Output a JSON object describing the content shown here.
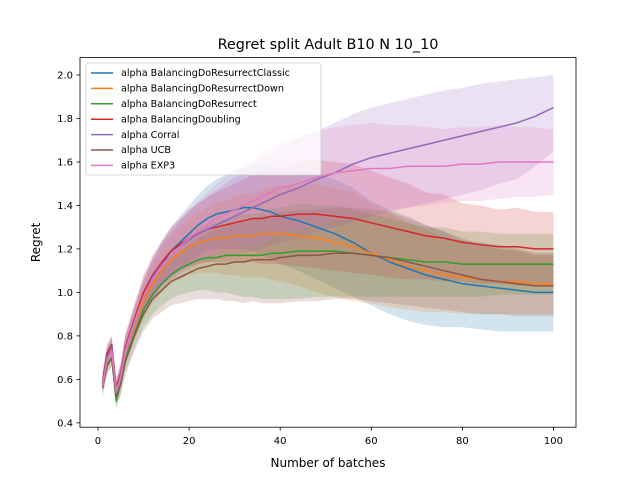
{
  "chart_data": {
    "type": "line",
    "title": "Regret split Adult B10 N 10_10",
    "xlabel": "Number of batches",
    "ylabel": "Regret",
    "xlim": [
      -3.95,
      104.95
    ],
    "ylim": [
      0.38,
      2.08
    ],
    "xticks": [
      0,
      20,
      40,
      60,
      80,
      100
    ],
    "xtick_labels": [
      "0",
      "20",
      "40",
      "60",
      "80",
      "100"
    ],
    "yticks": [
      0.4,
      0.6,
      0.8,
      1.0,
      1.2,
      1.4,
      1.6,
      1.8,
      2.0
    ],
    "ytick_labels": [
      "0.4",
      "0.6",
      "0.8",
      "1.0",
      "1.2",
      "1.4",
      "1.6",
      "1.8",
      "2.0"
    ],
    "grid": false,
    "legend_position": "top-left",
    "series": [
      {
        "name": "alpha BalancingDoResurrectClassic",
        "color": "#1f77b4",
        "x": [
          1,
          2,
          3,
          4,
          5,
          6,
          8,
          10,
          12,
          14,
          16,
          18,
          20,
          22,
          24,
          26,
          28,
          30,
          32,
          34,
          36,
          38,
          40,
          44,
          48,
          52,
          56,
          60,
          64,
          68,
          72,
          76,
          80,
          84,
          88,
          92,
          96,
          100
        ],
        "y": [
          0.58,
          0.72,
          0.76,
          0.55,
          0.62,
          0.74,
          0.86,
          0.98,
          1.06,
          1.13,
          1.19,
          1.23,
          1.27,
          1.31,
          1.34,
          1.36,
          1.37,
          1.38,
          1.39,
          1.39,
          1.38,
          1.37,
          1.35,
          1.33,
          1.3,
          1.27,
          1.23,
          1.18,
          1.14,
          1.11,
          1.08,
          1.06,
          1.04,
          1.03,
          1.02,
          1.01,
          1.0,
          1.0
        ],
        "lower": [
          0.54,
          0.68,
          0.72,
          0.51,
          0.57,
          0.68,
          0.79,
          0.9,
          0.97,
          1.03,
          1.08,
          1.11,
          1.14,
          1.17,
          1.19,
          1.2,
          1.2,
          1.2,
          1.2,
          1.19,
          1.17,
          1.15,
          1.13,
          1.1,
          1.06,
          1.02,
          0.98,
          0.94,
          0.9,
          0.87,
          0.85,
          0.84,
          0.84,
          0.83,
          0.82,
          0.82,
          0.82,
          0.82
        ],
        "upper": [
          0.62,
          0.76,
          0.8,
          0.59,
          0.67,
          0.8,
          0.93,
          1.06,
          1.15,
          1.23,
          1.3,
          1.35,
          1.4,
          1.45,
          1.49,
          1.52,
          1.54,
          1.56,
          1.58,
          1.59,
          1.59,
          1.59,
          1.57,
          1.56,
          1.54,
          1.52,
          1.48,
          1.42,
          1.38,
          1.35,
          1.31,
          1.28,
          1.24,
          1.23,
          1.22,
          1.2,
          1.18,
          1.18
        ]
      },
      {
        "name": "alpha BalancingDoResurrectDown",
        "color": "#ff7f0e",
        "x": [
          1,
          2,
          3,
          4,
          5,
          6,
          8,
          10,
          12,
          14,
          16,
          18,
          20,
          22,
          24,
          26,
          28,
          30,
          32,
          34,
          36,
          38,
          40,
          44,
          48,
          52,
          56,
          60,
          64,
          68,
          72,
          76,
          80,
          84,
          88,
          92,
          96,
          100
        ],
        "y": [
          0.58,
          0.7,
          0.74,
          0.56,
          0.62,
          0.73,
          0.85,
          0.96,
          1.04,
          1.1,
          1.15,
          1.18,
          1.21,
          1.23,
          1.24,
          1.25,
          1.25,
          1.26,
          1.26,
          1.26,
          1.27,
          1.27,
          1.27,
          1.26,
          1.25,
          1.23,
          1.21,
          1.18,
          1.15,
          1.12,
          1.1,
          1.08,
          1.07,
          1.06,
          1.05,
          1.05,
          1.04,
          1.04
        ],
        "lower": [
          0.54,
          0.66,
          0.7,
          0.52,
          0.57,
          0.67,
          0.78,
          0.88,
          0.95,
          1.0,
          1.04,
          1.06,
          1.08,
          1.09,
          1.09,
          1.09,
          1.08,
          1.08,
          1.07,
          1.07,
          1.07,
          1.06,
          1.05,
          1.03,
          1.0,
          0.98,
          0.96,
          0.95,
          0.93,
          0.92,
          0.91,
          0.91,
          0.9,
          0.9,
          0.9,
          0.9,
          0.9,
          0.9
        ],
        "upper": [
          0.62,
          0.74,
          0.78,
          0.6,
          0.67,
          0.79,
          0.92,
          1.04,
          1.13,
          1.2,
          1.26,
          1.3,
          1.34,
          1.37,
          1.39,
          1.41,
          1.42,
          1.44,
          1.45,
          1.45,
          1.47,
          1.48,
          1.49,
          1.49,
          1.5,
          1.48,
          1.46,
          1.41,
          1.37,
          1.32,
          1.29,
          1.25,
          1.24,
          1.22,
          1.2,
          1.2,
          1.18,
          1.18
        ]
      },
      {
        "name": "alpha BalancingDoResurrect",
        "color": "#2ca02c",
        "x": [
          1,
          2,
          3,
          4,
          5,
          6,
          8,
          10,
          12,
          14,
          16,
          18,
          20,
          22,
          24,
          26,
          28,
          30,
          32,
          34,
          36,
          38,
          40,
          44,
          48,
          52,
          56,
          60,
          64,
          68,
          72,
          76,
          80,
          84,
          88,
          92,
          96,
          100
        ],
        "y": [
          0.57,
          0.67,
          0.7,
          0.5,
          0.58,
          0.69,
          0.81,
          0.92,
          0.99,
          1.04,
          1.08,
          1.11,
          1.13,
          1.15,
          1.16,
          1.16,
          1.17,
          1.17,
          1.17,
          1.17,
          1.17,
          1.18,
          1.18,
          1.19,
          1.19,
          1.19,
          1.18,
          1.17,
          1.16,
          1.15,
          1.14,
          1.14,
          1.13,
          1.13,
          1.13,
          1.13,
          1.13,
          1.13
        ],
        "lower": [
          0.53,
          0.63,
          0.66,
          0.46,
          0.53,
          0.63,
          0.74,
          0.84,
          0.9,
          0.94,
          0.97,
          0.99,
          1.0,
          1.01,
          1.01,
          1.0,
          1.0,
          0.99,
          0.98,
          0.98,
          0.97,
          0.97,
          0.97,
          0.97,
          0.98,
          0.98,
          0.98,
          0.98,
          0.98,
          0.98,
          0.98,
          0.98,
          0.98,
          0.98,
          0.99,
          0.99,
          0.99,
          0.99
        ],
        "upper": [
          0.61,
          0.71,
          0.74,
          0.54,
          0.63,
          0.75,
          0.88,
          1.0,
          1.08,
          1.14,
          1.19,
          1.23,
          1.26,
          1.29,
          1.31,
          1.32,
          1.34,
          1.35,
          1.36,
          1.36,
          1.37,
          1.39,
          1.39,
          1.41,
          1.4,
          1.4,
          1.38,
          1.36,
          1.34,
          1.32,
          1.3,
          1.3,
          1.28,
          1.28,
          1.27,
          1.27,
          1.27,
          1.27
        ]
      },
      {
        "name": "alpha BalancingDoubling",
        "color": "#d62728",
        "x": [
          1,
          2,
          3,
          4,
          5,
          6,
          8,
          10,
          12,
          14,
          16,
          18,
          20,
          22,
          24,
          26,
          28,
          30,
          32,
          34,
          36,
          38,
          40,
          44,
          48,
          52,
          56,
          60,
          64,
          68,
          72,
          76,
          80,
          84,
          88,
          92,
          96,
          100
        ],
        "y": [
          0.59,
          0.72,
          0.76,
          0.56,
          0.63,
          0.75,
          0.88,
          1.0,
          1.08,
          1.14,
          1.19,
          1.22,
          1.25,
          1.27,
          1.29,
          1.3,
          1.31,
          1.32,
          1.33,
          1.34,
          1.34,
          1.35,
          1.35,
          1.36,
          1.36,
          1.35,
          1.34,
          1.32,
          1.3,
          1.28,
          1.26,
          1.25,
          1.23,
          1.22,
          1.21,
          1.21,
          1.2,
          1.2
        ],
        "lower": [
          0.55,
          0.68,
          0.72,
          0.52,
          0.58,
          0.69,
          0.81,
          0.92,
          0.99,
          1.04,
          1.08,
          1.1,
          1.12,
          1.13,
          1.14,
          1.14,
          1.14,
          1.14,
          1.14,
          1.14,
          1.13,
          1.13,
          1.13,
          1.12,
          1.11,
          1.1,
          1.09,
          1.08,
          1.07,
          1.06,
          1.06,
          1.05,
          1.05,
          1.04,
          1.04,
          1.03,
          1.03,
          1.03
        ],
        "upper": [
          0.63,
          0.76,
          0.8,
          0.6,
          0.68,
          0.81,
          0.95,
          1.08,
          1.17,
          1.24,
          1.3,
          1.34,
          1.38,
          1.41,
          1.44,
          1.46,
          1.48,
          1.5,
          1.52,
          1.54,
          1.55,
          1.57,
          1.57,
          1.6,
          1.61,
          1.6,
          1.59,
          1.56,
          1.53,
          1.5,
          1.46,
          1.45,
          1.41,
          1.4,
          1.38,
          1.39,
          1.37,
          1.37
        ]
      },
      {
        "name": "alpha Corral",
        "color": "#9467bd",
        "x": [
          1,
          2,
          3,
          4,
          5,
          6,
          8,
          10,
          12,
          14,
          16,
          18,
          20,
          22,
          24,
          26,
          28,
          30,
          32,
          34,
          36,
          38,
          40,
          44,
          48,
          52,
          56,
          60,
          64,
          68,
          72,
          76,
          80,
          84,
          88,
          92,
          96,
          100
        ],
        "y": [
          0.58,
          0.7,
          0.75,
          0.55,
          0.62,
          0.74,
          0.87,
          0.98,
          1.07,
          1.13,
          1.17,
          1.21,
          1.24,
          1.27,
          1.29,
          1.31,
          1.33,
          1.35,
          1.37,
          1.39,
          1.41,
          1.43,
          1.45,
          1.48,
          1.52,
          1.55,
          1.59,
          1.62,
          1.64,
          1.66,
          1.68,
          1.7,
          1.72,
          1.74,
          1.76,
          1.78,
          1.81,
          1.85
        ],
        "lower": [
          0.54,
          0.66,
          0.71,
          0.51,
          0.57,
          0.68,
          0.8,
          0.9,
          0.98,
          1.03,
          1.06,
          1.09,
          1.11,
          1.13,
          1.14,
          1.15,
          1.16,
          1.17,
          1.18,
          1.19,
          1.2,
          1.22,
          1.23,
          1.25,
          1.28,
          1.3,
          1.32,
          1.35,
          1.37,
          1.39,
          1.41,
          1.43,
          1.45,
          1.47,
          1.5,
          1.52,
          1.58,
          1.65
        ],
        "upper": [
          0.62,
          0.74,
          0.79,
          0.59,
          0.67,
          0.8,
          0.94,
          1.06,
          1.16,
          1.23,
          1.28,
          1.33,
          1.37,
          1.41,
          1.44,
          1.47,
          1.5,
          1.53,
          1.56,
          1.59,
          1.62,
          1.64,
          1.67,
          1.71,
          1.74,
          1.78,
          1.82,
          1.85,
          1.87,
          1.89,
          1.91,
          1.93,
          1.94,
          1.96,
          1.97,
          1.98,
          1.99,
          2.0
        ]
      },
      {
        "name": "alpha UCB",
        "color": "#8c564b",
        "x": [
          1,
          2,
          3,
          4,
          5,
          6,
          8,
          10,
          12,
          14,
          16,
          18,
          20,
          22,
          24,
          26,
          28,
          30,
          32,
          34,
          36,
          38,
          40,
          44,
          48,
          52,
          56,
          60,
          64,
          68,
          72,
          76,
          80,
          84,
          88,
          92,
          96,
          100
        ],
        "y": [
          0.56,
          0.66,
          0.7,
          0.52,
          0.58,
          0.68,
          0.8,
          0.9,
          0.97,
          1.01,
          1.05,
          1.07,
          1.09,
          1.11,
          1.12,
          1.13,
          1.13,
          1.14,
          1.14,
          1.15,
          1.15,
          1.15,
          1.16,
          1.17,
          1.17,
          1.18,
          1.18,
          1.17,
          1.16,
          1.14,
          1.12,
          1.1,
          1.08,
          1.06,
          1.05,
          1.04,
          1.03,
          1.03
        ],
        "lower": [
          0.52,
          0.62,
          0.66,
          0.48,
          0.53,
          0.62,
          0.73,
          0.82,
          0.88,
          0.91,
          0.94,
          0.95,
          0.96,
          0.97,
          0.97,
          0.97,
          0.96,
          0.96,
          0.95,
          0.96,
          0.95,
          0.95,
          0.95,
          0.96,
          0.96,
          0.97,
          0.97,
          0.96,
          0.95,
          0.94,
          0.93,
          0.92,
          0.91,
          0.9,
          0.9,
          0.89,
          0.89,
          0.89
        ],
        "upper": [
          0.6,
          0.7,
          0.74,
          0.56,
          0.63,
          0.74,
          0.87,
          0.98,
          1.06,
          1.11,
          1.16,
          1.19,
          1.22,
          1.25,
          1.27,
          1.29,
          1.3,
          1.32,
          1.33,
          1.34,
          1.35,
          1.35,
          1.37,
          1.38,
          1.38,
          1.39,
          1.39,
          1.38,
          1.37,
          1.34,
          1.31,
          1.28,
          1.25,
          1.22,
          1.2,
          1.19,
          1.17,
          1.17
        ]
      },
      {
        "name": "alpha EXP3",
        "color": "#e377c2",
        "x": [
          1,
          2,
          3,
          4,
          5,
          6,
          8,
          10,
          12,
          14,
          16,
          18,
          20,
          22,
          24,
          26,
          28,
          30,
          32,
          34,
          36,
          38,
          40,
          44,
          48,
          52,
          56,
          60,
          64,
          68,
          72,
          76,
          80,
          84,
          88,
          92,
          96,
          100
        ],
        "y": [
          0.57,
          0.69,
          0.73,
          0.54,
          0.61,
          0.73,
          0.86,
          0.98,
          1.06,
          1.12,
          1.17,
          1.21,
          1.25,
          1.28,
          1.31,
          1.34,
          1.36,
          1.38,
          1.4,
          1.42,
          1.44,
          1.46,
          1.48,
          1.5,
          1.53,
          1.55,
          1.56,
          1.57,
          1.57,
          1.58,
          1.58,
          1.58,
          1.59,
          1.59,
          1.6,
          1.6,
          1.6,
          1.6
        ],
        "lower": [
          0.53,
          0.65,
          0.69,
          0.5,
          0.56,
          0.67,
          0.79,
          0.9,
          0.97,
          1.02,
          1.06,
          1.09,
          1.12,
          1.14,
          1.16,
          1.18,
          1.19,
          1.2,
          1.21,
          1.22,
          1.23,
          1.25,
          1.27,
          1.29,
          1.31,
          1.33,
          1.35,
          1.36,
          1.38,
          1.39,
          1.4,
          1.41,
          1.42,
          1.42,
          1.43,
          1.44,
          1.44,
          1.45
        ],
        "upper": [
          0.61,
          0.73,
          0.77,
          0.58,
          0.66,
          0.79,
          0.93,
          1.06,
          1.15,
          1.22,
          1.28,
          1.33,
          1.38,
          1.42,
          1.46,
          1.5,
          1.53,
          1.56,
          1.59,
          1.62,
          1.65,
          1.67,
          1.69,
          1.71,
          1.74,
          1.76,
          1.77,
          1.78,
          1.77,
          1.77,
          1.76,
          1.75,
          1.76,
          1.76,
          1.77,
          1.76,
          1.76,
          1.75
        ]
      }
    ]
  }
}
